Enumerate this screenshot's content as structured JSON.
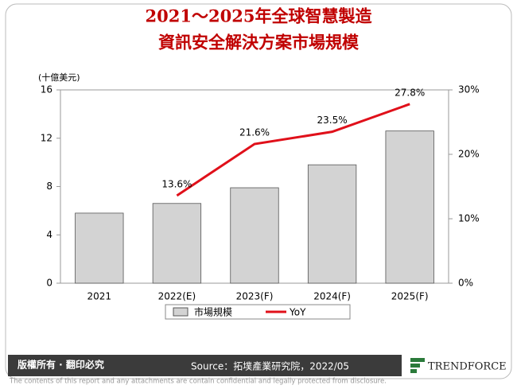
{
  "chart_data": {
    "type": "bar-line",
    "title": "2021～2025年全球智慧製造",
    "subtitle": "資訊安全解決方案市場規模",
    "y_label": "(十億美元)",
    "categories": [
      "2021",
      "2022(E)",
      "2023(F)",
      "2024(F)",
      "2025(F)"
    ],
    "series": [
      {
        "name": "市場規模",
        "type": "bar",
        "color": "#d3d3d3",
        "values": [
          5.8,
          6.6,
          7.9,
          9.8,
          12.6
        ]
      },
      {
        "name": "YoY",
        "type": "line",
        "axis": "y2",
        "color": "#e0101a",
        "values": [
          null,
          13.6,
          21.6,
          23.5,
          27.8
        ],
        "value_labels": [
          null,
          "13.6%",
          "21.6%",
          "23.5%",
          "27.8%"
        ]
      }
    ],
    "ylim": [
      0,
      16
    ],
    "yticks": [
      0,
      4,
      8,
      12,
      16
    ],
    "y2lim": [
      0,
      30
    ],
    "y2ticks": [
      {
        "value": 0,
        "label": "0%"
      },
      {
        "value": 10,
        "label": "10%"
      },
      {
        "value": 20,
        "label": "20%"
      },
      {
        "value": 30,
        "label": "30%"
      }
    ],
    "grid": false,
    "legend": "bottom"
  },
  "footer": {
    "rights": "版權所有 · 翻印必究",
    "source": "Source：拓墣產業研究院，2022/05",
    "brand": "TRENDFORCE",
    "disclaimer": "The contents of this report and any attachments are contain confidential and legally protected from disclosure."
  }
}
